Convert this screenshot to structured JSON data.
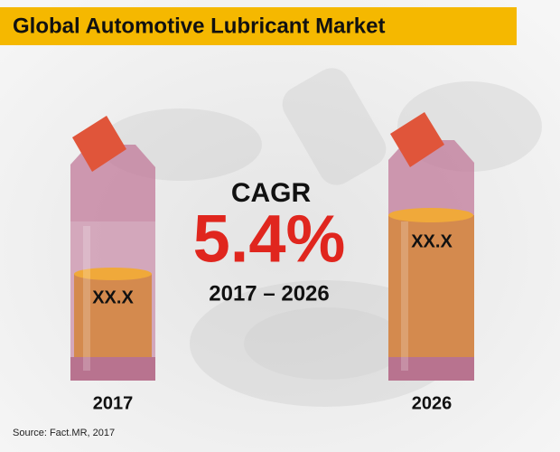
{
  "header": {
    "title": "Global Automotive Lubricant Market"
  },
  "cagr": {
    "label": "CAGR",
    "value": "5.4%",
    "period": "2017 – 2026"
  },
  "bottles": [
    {
      "value": "XX.X",
      "year": "2017"
    },
    {
      "value": "XX.X",
      "year": "2026"
    }
  ],
  "source": "Source: Fact.MR, 2017"
}
